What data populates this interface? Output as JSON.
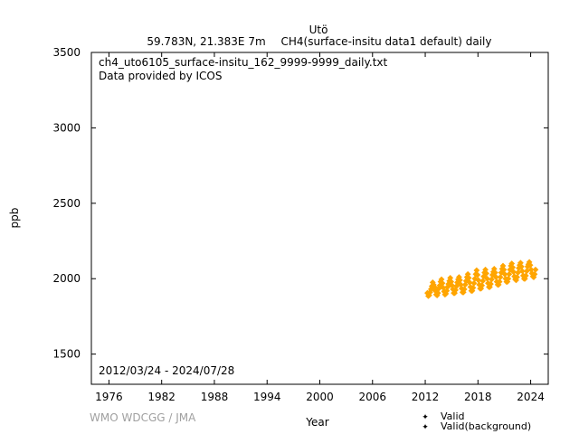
{
  "header": {
    "station": "Utö",
    "location": "59.783N, 21.383E 7m",
    "parameter": "CH4(surface-insitu data1 default) daily"
  },
  "annotations": {
    "filename": "ch4_uto6105_surface-insitu_162_9999-9999_daily.txt",
    "provider": "Data provided by ICOS",
    "period": "2012/03/24 - 2024/07/28",
    "credit": "WMO WDCGG / JMA"
  },
  "colors": {
    "valid": "#ffa500",
    "valid_background": "#1f8a6a",
    "axis": "#000000"
  },
  "chart_data": {
    "type": "scatter",
    "xlabel": "Year",
    "ylabel": "ppb",
    "xlim": [
      1974,
      2026
    ],
    "ylim": [
      1300,
      3500
    ],
    "xticks": [
      1976,
      1982,
      1988,
      1994,
      2000,
      2006,
      2012,
      2018,
      2024
    ],
    "yticks": [
      1500,
      2000,
      2500,
      3000,
      3500
    ],
    "grid": false,
    "legend": {
      "placement": "bottom-right",
      "entries": [
        "Valid",
        "Valid(background)"
      ]
    },
    "series": [
      {
        "name": "Valid",
        "x": [
          2012.25,
          2012.35,
          2012.45,
          2012.55,
          2012.65,
          2012.75,
          2012.85,
          2012.95,
          2013.05,
          2013.15,
          2013.25,
          2013.35,
          2013.45,
          2013.55,
          2013.65,
          2013.75,
          2013.85,
          2013.95,
          2014.05,
          2014.15,
          2014.25,
          2014.35,
          2014.45,
          2014.55,
          2014.65,
          2014.75,
          2014.85,
          2014.95,
          2015.05,
          2015.15,
          2015.25,
          2015.35,
          2015.45,
          2015.55,
          2015.65,
          2015.75,
          2015.85,
          2015.95,
          2016.05,
          2016.15,
          2016.25,
          2016.35,
          2016.45,
          2016.55,
          2016.65,
          2016.75,
          2016.85,
          2016.95,
          2017.05,
          2017.15,
          2017.25,
          2017.35,
          2017.45,
          2017.55,
          2017.65,
          2017.75,
          2017.85,
          2017.95,
          2018.05,
          2018.15,
          2018.25,
          2018.35,
          2018.45,
          2018.55,
          2018.65,
          2018.75,
          2018.85,
          2018.95,
          2019.05,
          2019.15,
          2019.25,
          2019.35,
          2019.45,
          2019.55,
          2019.65,
          2019.75,
          2019.85,
          2019.95,
          2020.05,
          2020.15,
          2020.25,
          2020.35,
          2020.45,
          2020.55,
          2020.65,
          2020.75,
          2020.85,
          2020.95,
          2021.05,
          2021.15,
          2021.25,
          2021.35,
          2021.45,
          2021.55,
          2021.65,
          2021.75,
          2021.85,
          2021.95,
          2022.05,
          2022.15,
          2022.25,
          2022.35,
          2022.45,
          2022.55,
          2022.65,
          2022.75,
          2022.85,
          2022.95,
          2023.05,
          2023.15,
          2023.25,
          2023.35,
          2023.45,
          2023.55,
          2023.65,
          2023.75,
          2023.85,
          2023.95,
          2024.05,
          2024.15,
          2024.25,
          2024.35,
          2024.45,
          2024.55
        ],
        "y": [
          1905,
          1885,
          1890,
          1910,
          1930,
          1950,
          1975,
          1960,
          1945,
          1920,
          1895,
          1890,
          1905,
          1935,
          1955,
          1980,
          1995,
          1970,
          1940,
          1915,
          1895,
          1900,
          1920,
          1945,
          1965,
          1985,
          2005,
          1980,
          1955,
          1930,
          1905,
          1905,
          1925,
          1950,
          1975,
          1995,
          2010,
          1990,
          1960,
          1935,
          1910,
          1910,
          1930,
          1960,
          1985,
          2010,
          2030,
          2005,
          1975,
          1945,
          1920,
          1920,
          1940,
          1970,
          2000,
          2030,
          2055,
          2025,
          1990,
          1960,
          1935,
          1935,
          1955,
          1985,
          2015,
          2040,
          2060,
          2035,
          2000,
          1970,
          1945,
          1945,
          1965,
          1995,
          2025,
          2045,
          2065,
          2040,
          2010,
          1980,
          1960,
          1960,
          1980,
          2010,
          2040,
          2065,
          2085,
          2060,
          2030,
          2000,
          1980,
          1980,
          2000,
          2030,
          2060,
          2085,
          2100,
          2075,
          2045,
          2015,
          1995,
          1990,
          2010,
          2040,
          2070,
          2090,
          2105,
          2080,
          2050,
          2020,
          2000,
          2000,
          2020,
          2050,
          2080,
          2095,
          2110,
          2090,
          2060,
          2035,
          2015,
          2010,
          2030,
          2060
        ]
      }
    ]
  }
}
